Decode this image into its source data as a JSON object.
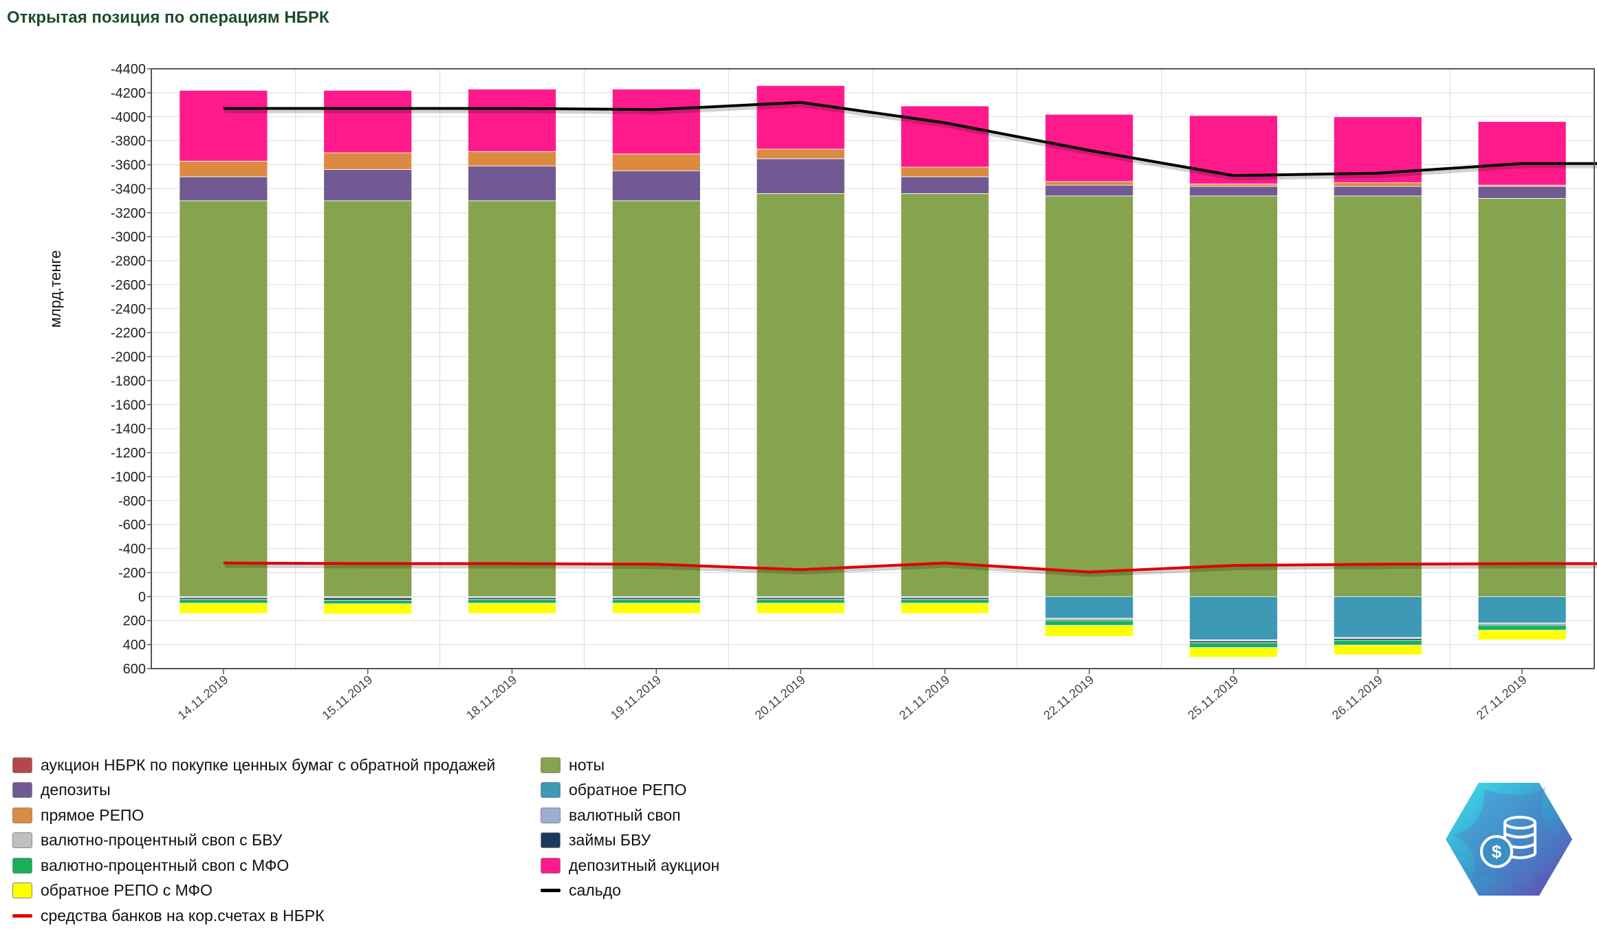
{
  "title": "Открытая позиция по операциям НБРК",
  "chart_data": {
    "type": "bar",
    "stacked": true,
    "ylabel": "млрд.тенге",
    "y_axis_reversed": true,
    "ylim": [
      -4400,
      600
    ],
    "yticks": [
      "-4400",
      "-4200",
      "-4000",
      "-3800",
      "-3600",
      "-3400",
      "-3200",
      "-3000",
      "-2800",
      "-2600",
      "-2400",
      "-2200",
      "-2000",
      "-1800",
      "-1600",
      "-1400",
      "-1200",
      "-1000",
      "-800",
      "-600",
      "-400",
      "-200",
      "0",
      "200",
      "400",
      "600"
    ],
    "grid": true,
    "legend_position": "bottom",
    "categories": [
      "14.11.2019",
      "15.11.2019",
      "18.11.2019",
      "19.11.2019",
      "20.11.2019",
      "21.11.2019",
      "22.11.2019",
      "25.11.2019",
      "26.11.2019",
      "27.11.2019"
    ],
    "series": [
      {
        "name": "аукцион НБРК по покупке ценных бумаг с обратной продажей",
        "color": "#b5474a",
        "kind": "bar",
        "values": [
          0,
          0,
          0,
          0,
          0,
          0,
          0,
          0,
          0,
          0
        ]
      },
      {
        "name": "ноты",
        "color": "#86a34e",
        "kind": "bar",
        "values": [
          -3300,
          -3300,
          -3300,
          -3300,
          -3360,
          -3360,
          -3340,
          -3340,
          -3340,
          -3320
        ]
      },
      {
        "name": "депозиты",
        "color": "#715a94",
        "kind": "bar",
        "values": [
          -200,
          -260,
          -290,
          -250,
          -290,
          -140,
          -90,
          -80,
          -80,
          -100
        ]
      },
      {
        "name": "обратное РЕПО",
        "color": "#3d99b5",
        "kind": "bar",
        "values": [
          0,
          0,
          0,
          0,
          0,
          0,
          180,
          360,
          340,
          220
        ]
      },
      {
        "name": "прямое РЕПО",
        "color": "#dc8a42",
        "kind": "bar",
        "values": [
          -130,
          -140,
          -120,
          -140,
          -80,
          -80,
          -30,
          -20,
          -30,
          -10
        ]
      },
      {
        "name": "валютный своп",
        "color": "#9aaed4",
        "kind": "bar",
        "values": [
          0,
          0,
          0,
          0,
          0,
          0,
          0,
          0,
          0,
          0
        ]
      },
      {
        "name": "валютно-процентный своп с БВУ",
        "color": "#c0c0c0",
        "kind": "bar",
        "values": [
          10,
          10,
          10,
          10,
          10,
          10,
          10,
          10,
          10,
          10
        ]
      },
      {
        "name": "займы БВУ",
        "color": "#1d3a5c",
        "kind": "bar",
        "values": [
          15,
          20,
          15,
          15,
          15,
          15,
          10,
          15,
          15,
          10
        ]
      },
      {
        "name": "валютно-процентный своп с МФО",
        "color": "#17b15a",
        "kind": "bar",
        "values": [
          30,
          30,
          30,
          30,
          30,
          30,
          40,
          40,
          40,
          40
        ]
      },
      {
        "name": "депозитный аукцион",
        "color": "#ff1a8c",
        "kind": "bar",
        "values": [
          -590,
          -520,
          -520,
          -540,
          -530,
          -510,
          -560,
          -570,
          -550,
          -530
        ]
      },
      {
        "name": "обратное РЕПО с МФО",
        "color": "#ffff00",
        "kind": "bar",
        "values": [
          85,
          85,
          85,
          85,
          85,
          85,
          90,
          80,
          80,
          80
        ]
      },
      {
        "name": "сальдо",
        "color": "#000000",
        "kind": "line",
        "values": [
          -4070,
          -4070,
          -4070,
          -4060,
          -4120,
          -3950,
          -3720,
          -3510,
          -3530,
          -3610
        ],
        "x_end": 10.5,
        "end_value": -3610
      },
      {
        "name": "средства банков на кор.счетах в НБРК",
        "color": "#e00000",
        "kind": "line",
        "values": [
          -280,
          -275,
          -275,
          -270,
          -225,
          -280,
          -205,
          -260,
          -270,
          -275
        ],
        "x_end": 10.5,
        "end_value": -275
      }
    ]
  },
  "legend_columns": [
    [
      "аукцион НБРК по покупке ценных бумаг с обратной продажей",
      "депозиты",
      "прямое РЕПО",
      "валютно-процентный своп с БВУ",
      "валютно-процентный своп с МФО",
      "обратное РЕПО с МФО",
      "средства банков на кор.счетах в НБРК"
    ],
    [
      "ноты",
      "обратное РЕПО",
      "валютный своп",
      "займы БВУ",
      "депозитный аукцион",
      "сальдо"
    ]
  ],
  "logo": {
    "icon": "coins-dollar-icon",
    "colors": [
      "#3fd4e8",
      "#6a3fb0"
    ]
  }
}
